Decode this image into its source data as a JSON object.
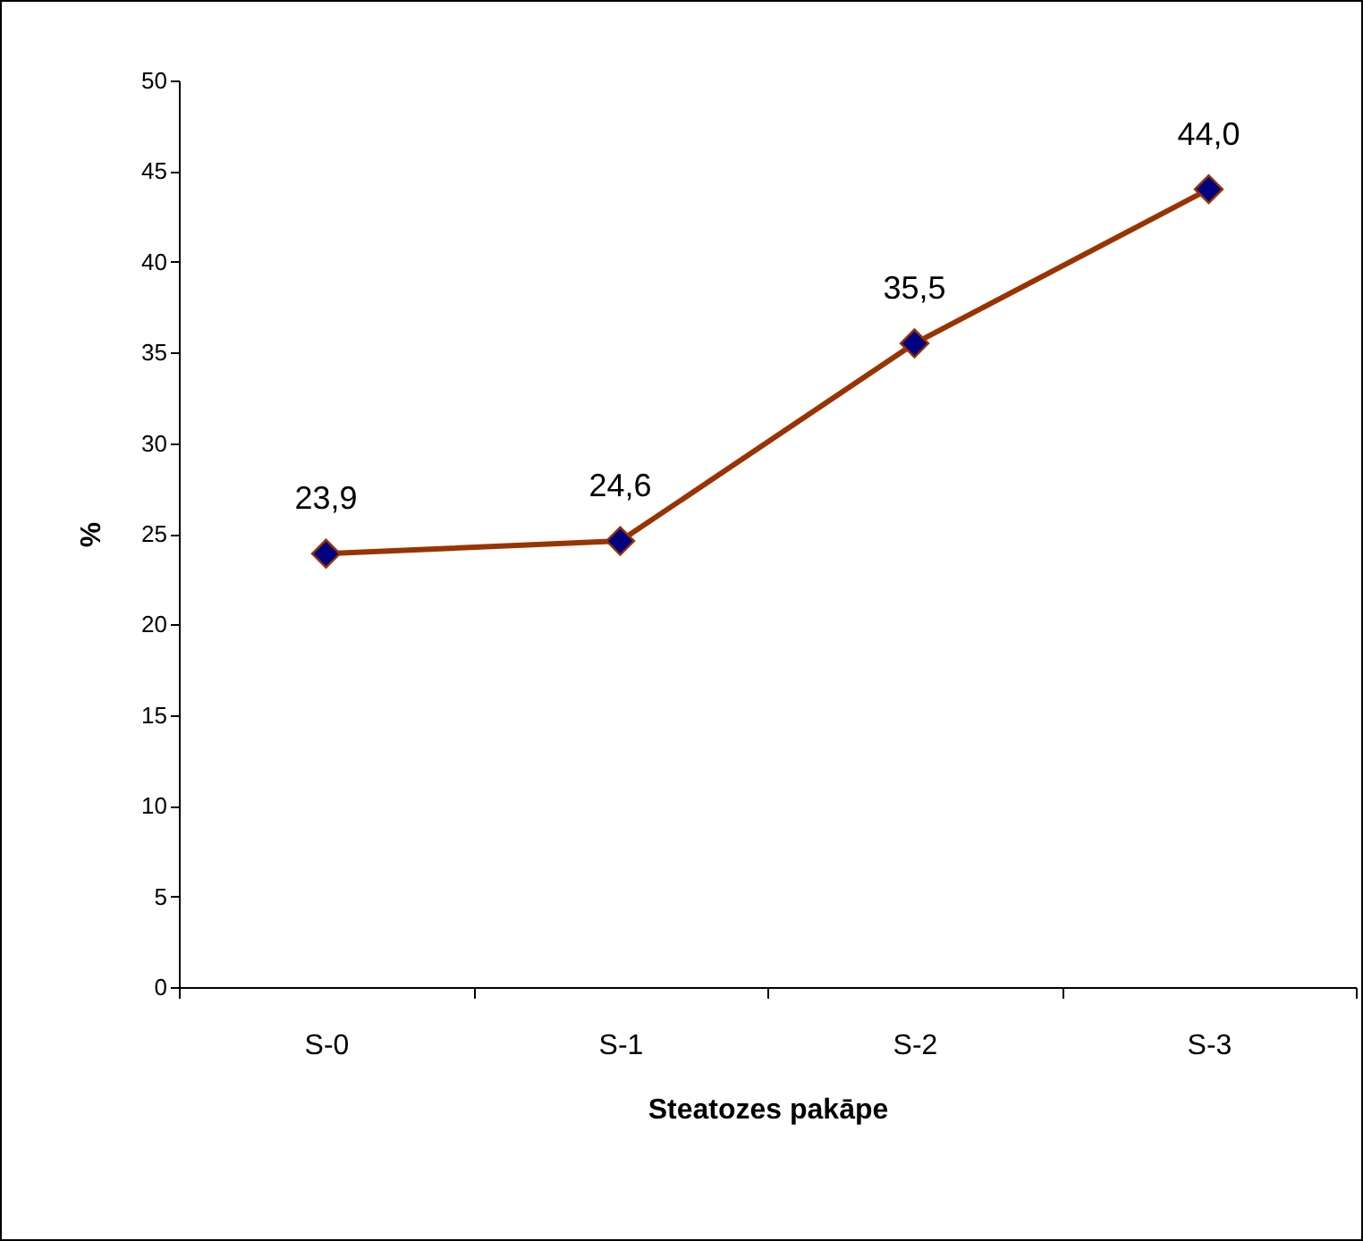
{
  "chart_data": {
    "type": "line",
    "xlabel": "Steatozes pakāpe",
    "ylabel": "%",
    "categories": [
      "S-0",
      "S-1",
      "S-2",
      "S-3"
    ],
    "series": [
      {
        "color": "#993300",
        "values": [
          23.9,
          24.6,
          35.5,
          44.0
        ],
        "value_labels": [
          "23,9",
          "24,6",
          "35,5",
          "44,0"
        ]
      }
    ],
    "ylim": [
      0,
      50
    ],
    "yticks": [
      0,
      5,
      10,
      15,
      20,
      25,
      30,
      35,
      40,
      45,
      50
    ],
    "marker": "diamond",
    "line_style": "solid"
  }
}
